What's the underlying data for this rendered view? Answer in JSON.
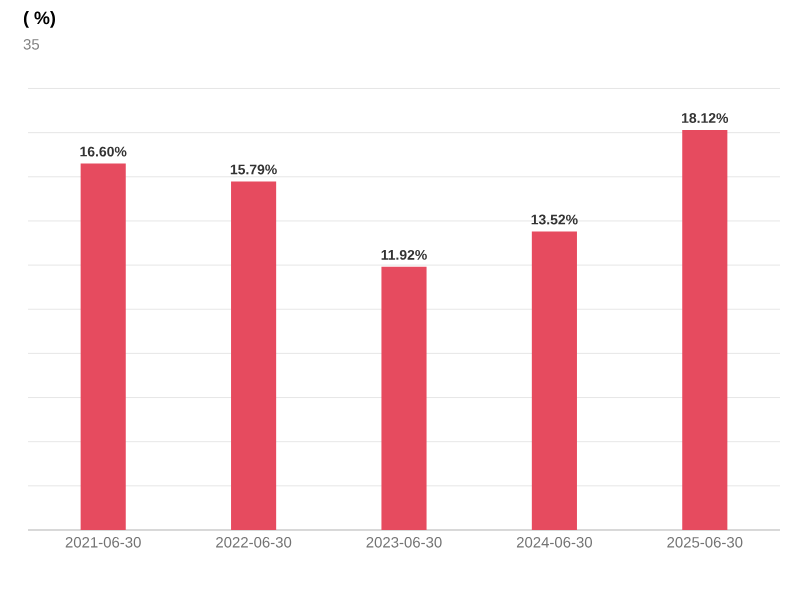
{
  "chart_data": {
    "type": "bar",
    "title": "( %)",
    "subtitle": "35",
    "categories": [
      "2021-06-30",
      "2022-06-30",
      "2023-06-30",
      "2024-06-30",
      "2025-06-30"
    ],
    "values": [
      16.6,
      15.79,
      11.92,
      13.52,
      18.12
    ],
    "value_labels": [
      "16.60%",
      "15.79%",
      "11.92%",
      "13.52%",
      "18.12%"
    ],
    "color": "#e64b5f",
    "tick_labels": "x",
    "grid": "y"
  }
}
